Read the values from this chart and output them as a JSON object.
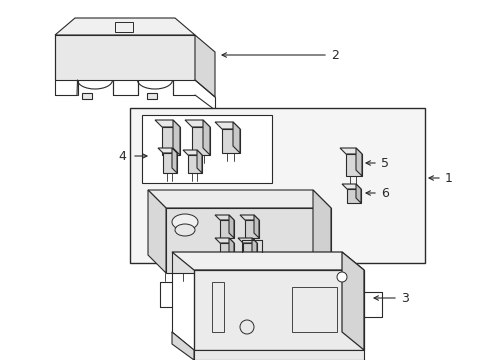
{
  "bg_color": "#ffffff",
  "line_color": "#2a2a2a",
  "gray_fill": "#f2f2f2",
  "mid_gray": "#e0e0e0",
  "figsize": [
    4.89,
    3.6
  ],
  "dpi": 100
}
